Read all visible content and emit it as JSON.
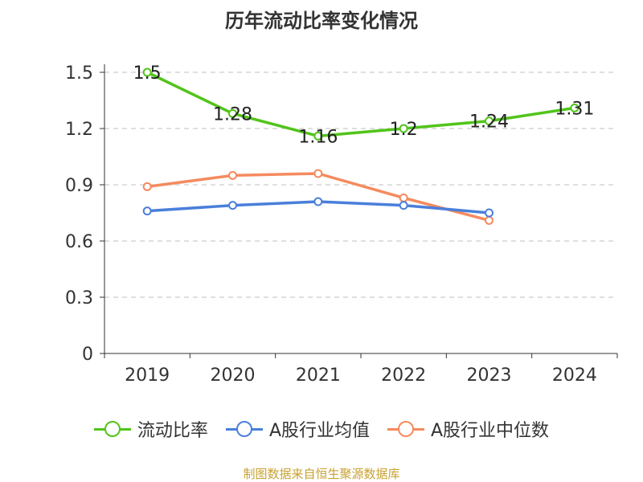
{
  "chart_data": {
    "type": "line",
    "title": "历年流动比率变化情况",
    "categories": [
      "2019",
      "2020",
      "2021",
      "2022",
      "2023",
      "2024"
    ],
    "ylim": [
      0,
      1.5
    ],
    "yticks": [
      "0",
      "0.3",
      "0.6",
      "0.9",
      "1.2",
      "1.5"
    ],
    "grid": true,
    "legend_position": "bottom",
    "series": [
      {
        "name": "流动比率",
        "color": "#52c41a",
        "values": [
          1.5,
          1.28,
          1.16,
          1.2,
          1.24,
          1.31
        ],
        "data_labels": [
          "1.5",
          "1.28",
          "1.16",
          "1.2",
          "1.24",
          "1.31"
        ]
      },
      {
        "name": "A股行业均值",
        "color": "#4a7fdb",
        "values": [
          0.76,
          0.79,
          0.81,
          0.79,
          0.75,
          null
        ]
      },
      {
        "name": "A股行业中位数",
        "color": "#f58a5e",
        "values": [
          0.89,
          0.95,
          0.96,
          0.83,
          0.71,
          null
        ]
      }
    ]
  },
  "footer": {
    "source": "制图数据来自恒生聚源数据库"
  }
}
